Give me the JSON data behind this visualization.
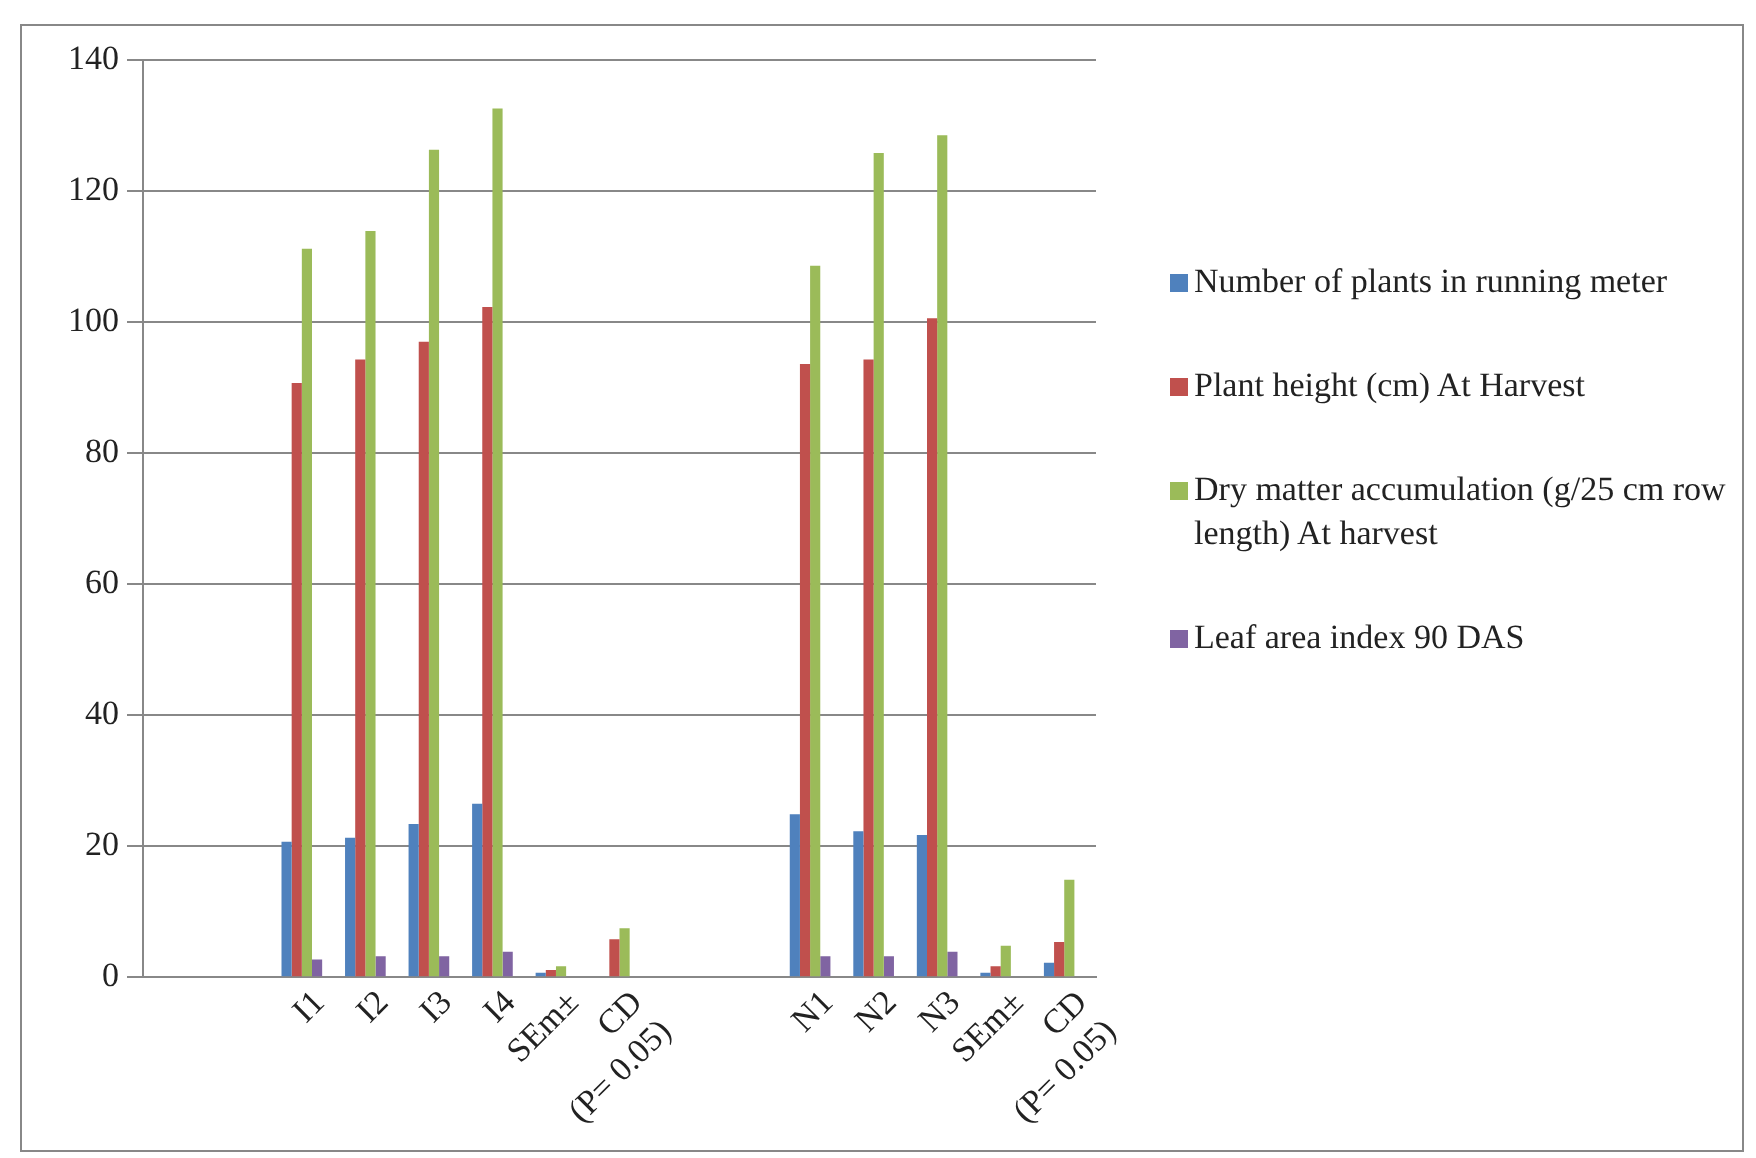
{
  "chart_data": {
    "type": "bar",
    "categories": [
      null,
      null,
      "I1",
      "I2",
      "I3",
      "I4",
      "SEm±",
      "CD\n(P= 0.05)",
      null,
      null,
      "N1",
      "N2",
      "N3",
      "SEm±",
      "CD\n(P= 0.05)"
    ],
    "series": [
      {
        "name": "Number of plants in running meter",
        "color": "#4f81bd",
        "values": [
          null,
          null,
          20.7,
          21.3,
          23.4,
          26.5,
          0.7,
          null,
          null,
          null,
          24.9,
          22.3,
          21.7,
          0.7,
          2.2
        ]
      },
      {
        "name": "Plant height (cm) At Harvest",
        "color": "#c0504d",
        "values": [
          null,
          null,
          90.7,
          94.3,
          97.0,
          102.3,
          1.1,
          5.8,
          null,
          null,
          93.6,
          94.3,
          100.6,
          1.7,
          5.4
        ]
      },
      {
        "name": "Dry matter accumulation (g/25 cm row length) At harvest",
        "color": "#9bbb59",
        "values": [
          null,
          null,
          111.2,
          113.9,
          126.3,
          132.6,
          1.7,
          7.5,
          null,
          null,
          108.6,
          125.8,
          128.5,
          4.8,
          14.9
        ]
      },
      {
        "name": "Leaf area index 90 DAS",
        "color": "#8064a2",
        "values": [
          null,
          null,
          2.7,
          3.2,
          3.2,
          3.9,
          null,
          null,
          null,
          null,
          3.2,
          3.2,
          3.9,
          null,
          null
        ]
      }
    ],
    "ylim": [
      0,
      140
    ],
    "yticks": [
      0,
      20,
      40,
      60,
      80,
      100,
      120,
      140
    ],
    "grid": "y",
    "legend": "right"
  }
}
